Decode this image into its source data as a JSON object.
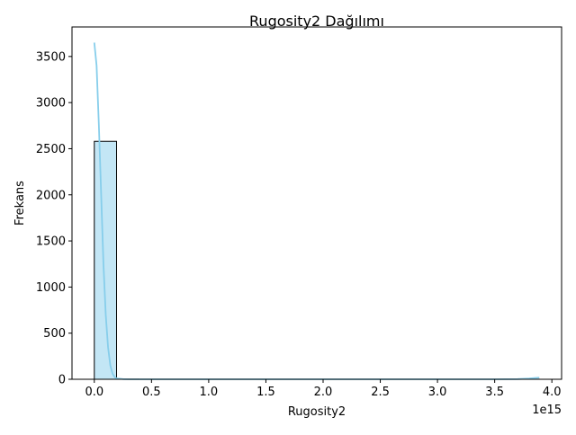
{
  "chart_data": {
    "type": "bar",
    "title": "Rugosity2 Dağılımı",
    "xlabel": "Rugosity2",
    "ylabel": "Frekans",
    "x_offset_label": "1e15",
    "x_scale": 1000000000000000.0,
    "xlim": [
      -0.195,
      4.085
    ],
    "ylim": [
      0,
      3820
    ],
    "xticks": [
      0.0,
      0.5,
      1.0,
      1.5,
      2.0,
      2.5,
      3.0,
      3.5,
      4.0
    ],
    "xtick_labels": [
      "0.0",
      "0.5",
      "1.0",
      "1.5",
      "2.0",
      "2.5",
      "3.0",
      "3.5",
      "4.0"
    ],
    "yticks": [
      0,
      500,
      1000,
      1500,
      2000,
      2500,
      3000,
      3500
    ],
    "ytick_labels": [
      "0",
      "500",
      "1000",
      "1500",
      "2000",
      "2500",
      "3000",
      "3500"
    ],
    "bins": {
      "start": 0.0,
      "width": 0.1945,
      "counts": [
        2580,
        1,
        0,
        0,
        0,
        0,
        0,
        0,
        0,
        0,
        0,
        0,
        0,
        0,
        0,
        0,
        0,
        0,
        0,
        1
      ]
    },
    "kde": {
      "x": [
        0.0,
        0.02,
        0.04,
        0.06,
        0.08,
        0.1,
        0.12,
        0.14,
        0.16,
        0.18,
        0.2,
        0.25,
        0.3,
        0.5,
        1.0,
        2.0,
        3.0,
        3.5,
        3.7,
        3.8,
        3.89
      ],
      "y": [
        3650,
        3400,
        2750,
        2000,
        1250,
        700,
        350,
        150,
        60,
        20,
        8,
        2,
        0,
        0,
        0,
        0,
        0,
        0,
        2,
        8,
        18
      ]
    },
    "colors": {
      "bar_fill": "#c3e6f5",
      "bar_edge": "#000000",
      "kde_line": "#87ceeb"
    },
    "grid": false,
    "legend": "none"
  }
}
